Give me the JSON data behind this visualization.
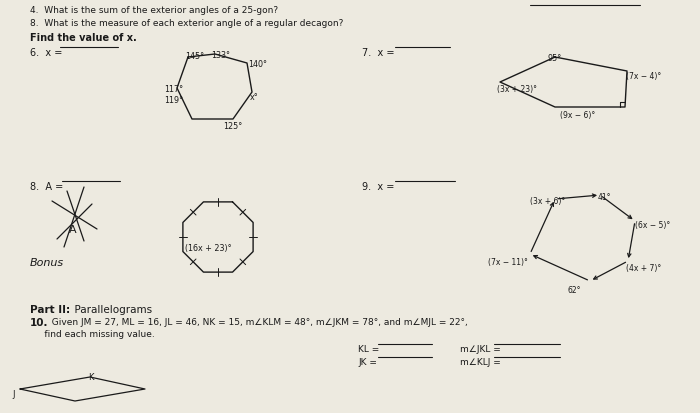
{
  "paper_color": "#edeae0",
  "text_color": "#222222",
  "line1": "4.  What is the sum of the exterior angles of a 25-gon?",
  "line2": "8.  What is the measure of each exterior angle of a regular decagon?",
  "find_value": "Find the value of x.",
  "q6_label": "6.  x = ",
  "q7_label": "7.  x = ",
  "q8_label": "8.  A = ",
  "bonus_label": "Bonus",
  "q9_label": "9.  x = ",
  "part2_bold": "Part II:",
  "part2_rest": "  Parallelograms",
  "q10_bold": "10.",
  "q10_rest": "  Given JM = 27, ML = 16, JL = 46, NK = 15, m∠KLM = 48°, m∠JKM = 78°, and m∠MJL = 22°,",
  "q10_line2": "     find each missing value.",
  "kl_label": "KL = ",
  "mjkl_label": "m∠JKL = ",
  "jk_label": "JK = ",
  "mklj_label": "m∠KLJ = "
}
